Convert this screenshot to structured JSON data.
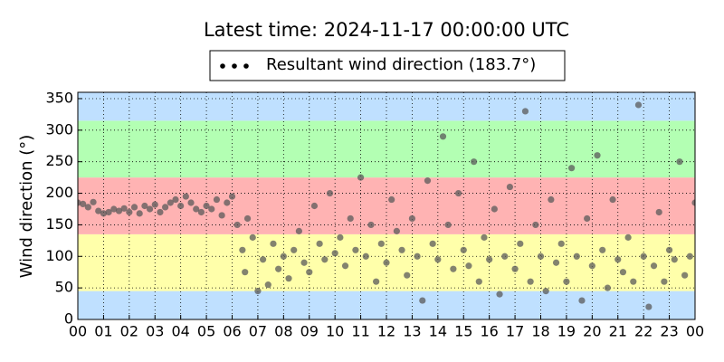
{
  "chart_data": {
    "type": "scatter",
    "title": "Latest time: 2024-11-17 00:00:00 UTC",
    "y_label": "Wind direction (°)",
    "legend_label": "Resultant wind direction (183.7°)",
    "grid": true,
    "xlim": [
      0,
      24
    ],
    "ylim": [
      0,
      360
    ],
    "xticks": [
      {
        "value": 0,
        "label": "00"
      },
      {
        "value": 1,
        "label": "01"
      },
      {
        "value": 2,
        "label": "02"
      },
      {
        "value": 3,
        "label": "03"
      },
      {
        "value": 4,
        "label": "04"
      },
      {
        "value": 5,
        "label": "05"
      },
      {
        "value": 6,
        "label": "06"
      },
      {
        "value": 7,
        "label": "07"
      },
      {
        "value": 8,
        "label": "08"
      },
      {
        "value": 9,
        "label": "09"
      },
      {
        "value": 10,
        "label": "10"
      },
      {
        "value": 11,
        "label": "11"
      },
      {
        "value": 12,
        "label": "12"
      },
      {
        "value": 13,
        "label": "13"
      },
      {
        "value": 14,
        "label": "14"
      },
      {
        "value": 15,
        "label": "15"
      },
      {
        "value": 16,
        "label": "16"
      },
      {
        "value": 17,
        "label": "17"
      },
      {
        "value": 18,
        "label": "18"
      },
      {
        "value": 19,
        "label": "19"
      },
      {
        "value": 20,
        "label": "20"
      },
      {
        "value": 21,
        "label": "21"
      },
      {
        "value": 22,
        "label": "22"
      },
      {
        "value": 23,
        "label": "23"
      },
      {
        "value": 24,
        "label": "00"
      }
    ],
    "yticks": [
      0,
      50,
      100,
      150,
      200,
      250,
      300,
      350
    ],
    "bands": [
      {
        "from": 0,
        "to": 45,
        "color": "#bfe0ff"
      },
      {
        "from": 45,
        "to": 135,
        "color": "#ffffaa"
      },
      {
        "from": 135,
        "to": 225,
        "color": "#ffb3b3"
      },
      {
        "from": 225,
        "to": 315,
        "color": "#b3ffb3"
      },
      {
        "from": 315,
        "to": 360,
        "color": "#bfe0ff"
      }
    ],
    "series": [
      {
        "name": "Resultant wind direction",
        "color": "#5a5a5a",
        "x": [
          0.0,
          0.2,
          0.4,
          0.6,
          0.8,
          1.0,
          1.2,
          1.4,
          1.6,
          1.8,
          2.0,
          2.2,
          2.4,
          2.6,
          2.8,
          3.0,
          3.2,
          3.4,
          3.6,
          3.8,
          4.0,
          4.2,
          4.4,
          4.6,
          4.8,
          5.0,
          5.2,
          5.4,
          5.6,
          5.8,
          6.0,
          6.2,
          6.4,
          6.5,
          6.6,
          6.8,
          7.0,
          7.2,
          7.4,
          7.6,
          7.8,
          8.0,
          8.2,
          8.4,
          8.6,
          8.8,
          9.0,
          9.2,
          9.4,
          9.6,
          9.8,
          10.0,
          10.2,
          10.4,
          10.6,
          10.8,
          11.0,
          11.2,
          11.4,
          11.6,
          11.8,
          12.0,
          12.2,
          12.4,
          12.6,
          12.8,
          13.0,
          13.2,
          13.4,
          13.6,
          13.8,
          14.0,
          14.2,
          14.4,
          14.6,
          14.8,
          15.0,
          15.2,
          15.4,
          15.6,
          15.8,
          16.0,
          16.2,
          16.4,
          16.6,
          16.8,
          17.0,
          17.2,
          17.4,
          17.6,
          17.8,
          18.0,
          18.2,
          18.4,
          18.6,
          18.8,
          19.0,
          19.2,
          19.4,
          19.6,
          19.8,
          20.0,
          20.2,
          20.4,
          20.6,
          20.8,
          21.0,
          21.2,
          21.4,
          21.6,
          21.8,
          22.0,
          22.2,
          22.4,
          22.6,
          22.8,
          23.0,
          23.2,
          23.4,
          23.6,
          23.8,
          24.0
        ],
        "values": [
          185,
          183,
          178,
          186,
          172,
          168,
          170,
          175,
          172,
          176,
          170,
          178,
          168,
          180,
          175,
          182,
          170,
          178,
          185,
          190,
          180,
          195,
          185,
          175,
          170,
          180,
          175,
          190,
          165,
          185,
          195,
          150,
          110,
          75,
          160,
          130,
          45,
          95,
          55,
          120,
          80,
          100,
          65,
          110,
          140,
          90,
          75,
          180,
          120,
          95,
          200,
          105,
          130,
          85,
          160,
          110,
          225,
          100,
          150,
          60,
          120,
          90,
          190,
          140,
          110,
          70,
          160,
          100,
          30,
          220,
          120,
          95,
          290,
          150,
          80,
          200,
          110,
          85,
          250,
          60,
          130,
          95,
          175,
          40,
          100,
          210,
          80,
          120,
          330,
          60,
          150,
          100,
          45,
          190,
          90,
          120,
          60,
          240,
          100,
          30,
          160,
          85,
          260,
          110,
          50,
          190,
          95,
          75,
          130,
          60,
          340,
          100,
          20,
          85,
          170,
          60,
          110,
          95,
          250,
          70,
          100,
          185
        ]
      }
    ]
  }
}
